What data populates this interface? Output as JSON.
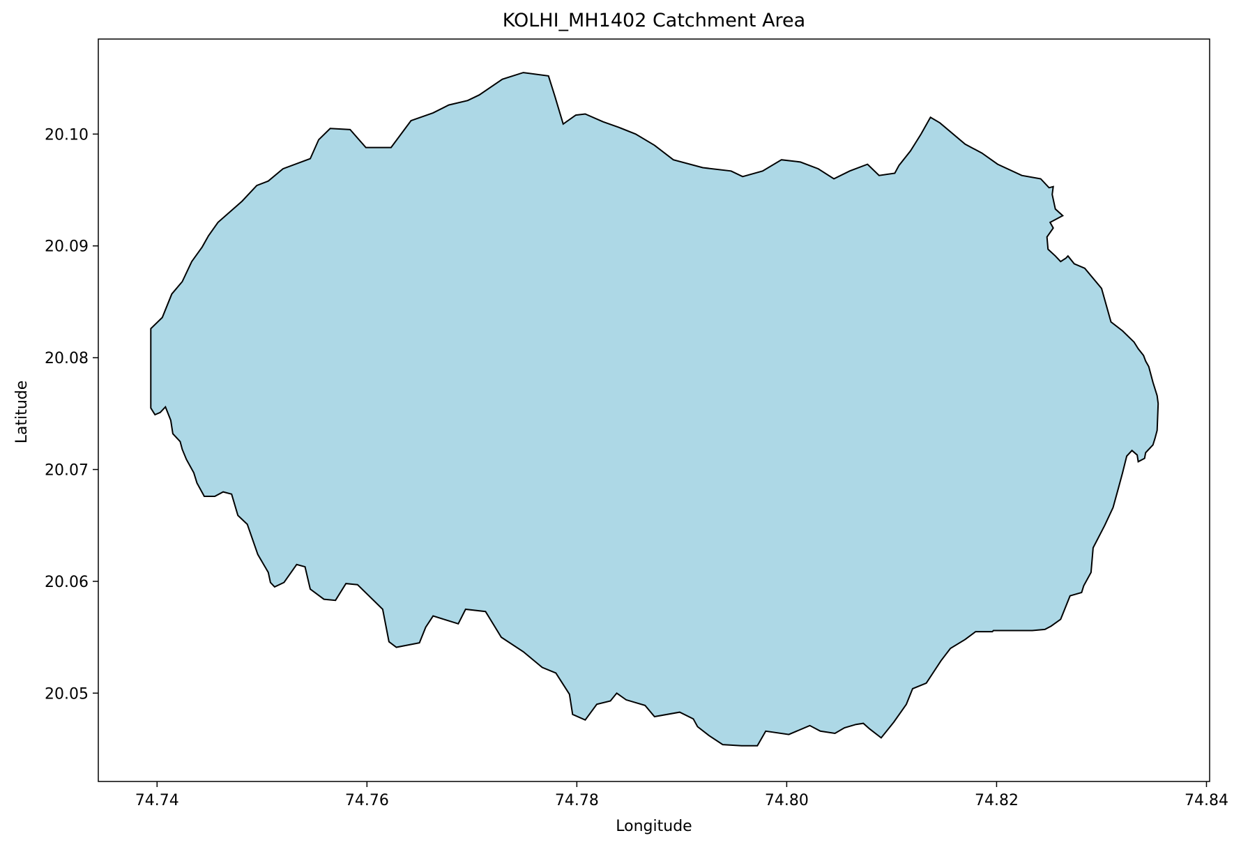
{
  "chart_data": {
    "type": "area",
    "title": "KOLHI_MH1402 Catchment Area",
    "xlabel": "Longitude",
    "ylabel": "Latitude",
    "xlim": [
      74.7344,
      74.8403
    ],
    "ylim": [
      20.0421,
      20.1085
    ],
    "x_ticks": [
      74.74,
      74.76,
      74.78,
      74.8,
      74.82,
      74.84
    ],
    "x_tick_labels": [
      "74.74",
      "74.76",
      "74.78",
      "74.80",
      "74.82",
      "74.84"
    ],
    "y_ticks": [
      20.05,
      20.06,
      20.07,
      20.08,
      20.09,
      20.1
    ],
    "y_tick_labels": [
      "20.05",
      "20.06",
      "20.07",
      "20.08",
      "20.09",
      "20.10"
    ],
    "grid": false,
    "fill_color": "#add8e6",
    "edge_color": "#000000",
    "polygon": {
      "lon": [
        74.7394,
        74.7398,
        74.7403,
        74.7408,
        74.7413,
        74.7415,
        74.7422,
        74.7424,
        74.7428,
        74.7435,
        74.7438,
        74.7445,
        74.7455,
        74.7463,
        74.7471,
        74.7477,
        74.7486,
        74.7496,
        74.7506,
        74.7508,
        74.7512,
        74.7521,
        74.7533,
        74.7541,
        74.7546,
        74.7559,
        74.757,
        74.758,
        74.7591,
        74.7615,
        74.7621,
        74.7628,
        74.765,
        74.7656,
        74.7663,
        74.7687,
        74.7694,
        74.7713,
        74.7728,
        74.7749,
        74.7767,
        74.778,
        74.7793,
        74.7796,
        74.7808,
        74.7819,
        74.7832,
        74.7838,
        74.7847,
        74.7865,
        74.7874,
        74.7898,
        74.7911,
        74.7915,
        74.7926,
        74.7939,
        74.7957,
        74.7972,
        74.798,
        74.8002,
        74.8022,
        74.8032,
        74.8046,
        74.8055,
        74.8066,
        74.8073,
        74.8079,
        74.809,
        74.8102,
        74.8114,
        74.812,
        74.8133,
        74.8147,
        74.8156,
        74.817,
        74.818,
        74.8183,
        74.8196,
        74.8197,
        74.821,
        74.8225,
        74.8234,
        74.8246,
        74.8252,
        74.8261,
        74.827,
        74.8281,
        74.8283,
        74.829,
        74.8292,
        74.8303,
        74.8311,
        74.8316,
        74.832,
        74.8324,
        74.8329,
        74.8334,
        74.8335,
        74.8341,
        74.8342,
        74.8349,
        74.8351,
        74.8353,
        74.8354,
        74.8353,
        74.8349,
        74.8345,
        74.8342,
        74.834,
        74.8335,
        74.8331,
        74.832,
        74.8309,
        74.83,
        74.8284,
        74.8274,
        74.8268,
        74.8266,
        74.8261,
        74.8256,
        74.8249,
        74.8248,
        74.8254,
        74.8251,
        74.8263,
        74.8256,
        74.8253,
        74.8254,
        74.825,
        74.8242,
        74.8224,
        74.8201,
        74.8186,
        74.817,
        74.8146,
        74.8137,
        74.8128,
        74.8118,
        74.8107,
        74.8103,
        74.8088,
        74.8077,
        74.806,
        74.8045,
        74.803,
        74.8013,
        74.7995,
        74.7977,
        74.7958,
        74.7947,
        74.792,
        74.7892,
        74.7874,
        74.7856,
        74.784,
        74.7825,
        74.7808,
        74.7799,
        74.7787,
        74.7779,
        74.7773,
        74.7749,
        74.7729,
        74.7707,
        74.7696,
        74.7678,
        74.7663,
        74.7642,
        74.7623,
        74.7599,
        74.7584,
        74.7565,
        74.7554,
        74.7546,
        74.752,
        74.7506,
        74.7495,
        74.7481,
        74.7458,
        74.7449,
        74.7443,
        74.7433,
        74.7424,
        74.7414,
        74.7405,
        74.7394
      ],
      "lat": [
        20.0755,
        20.0749,
        20.0751,
        20.0756,
        20.0744,
        20.0732,
        20.0725,
        20.0718,
        20.0709,
        20.0697,
        20.0688,
        20.0676,
        20.0676,
        20.068,
        20.0678,
        20.0659,
        20.0651,
        20.0624,
        20.0608,
        20.0599,
        20.0595,
        20.0599,
        20.0615,
        20.0613,
        20.0593,
        20.0584,
        20.0583,
        20.0598,
        20.0597,
        20.0575,
        20.0546,
        20.0541,
        20.0545,
        20.0559,
        20.0569,
        20.0562,
        20.0575,
        20.0573,
        20.055,
        20.0537,
        20.0523,
        20.0518,
        20.0499,
        20.0481,
        20.0476,
        20.049,
        20.0493,
        20.05,
        20.0494,
        20.0489,
        20.0479,
        20.0483,
        20.0477,
        20.047,
        20.0462,
        20.0454,
        20.0453,
        20.0453,
        20.0466,
        20.0463,
        20.0471,
        20.0466,
        20.0464,
        20.0469,
        20.0472,
        20.0473,
        20.0468,
        20.046,
        20.0474,
        20.049,
        20.0504,
        20.0509,
        20.0529,
        20.054,
        20.0548,
        20.0555,
        20.0555,
        20.0555,
        20.0556,
        20.0556,
        20.0556,
        20.0556,
        20.0557,
        20.056,
        20.0566,
        20.0587,
        20.059,
        20.0596,
        20.0608,
        20.063,
        20.065,
        20.0666,
        20.0683,
        20.0697,
        20.0712,
        20.0717,
        20.0713,
        20.0707,
        20.071,
        20.0715,
        20.0722,
        20.0728,
        20.0735,
        20.0759,
        20.0766,
        20.0778,
        20.0792,
        20.0797,
        20.0802,
        20.0808,
        20.0814,
        20.0824,
        20.0832,
        20.0862,
        20.088,
        20.0884,
        20.0891,
        20.0889,
        20.0886,
        20.0891,
        20.0897,
        20.0908,
        20.0916,
        20.0921,
        20.0927,
        20.0933,
        20.0946,
        20.0953,
        20.0952,
        20.096,
        20.0963,
        20.0973,
        20.0983,
        20.0991,
        20.101,
        20.1015,
        20.1,
        20.0985,
        20.0972,
        20.0965,
        20.0963,
        20.0973,
        20.0967,
        20.096,
        20.0969,
        20.0975,
        20.0977,
        20.0967,
        20.0962,
        20.0967,
        20.097,
        20.0977,
        20.099,
        20.1,
        20.1006,
        20.1011,
        20.1018,
        20.1017,
        20.1009,
        20.1034,
        20.1052,
        20.1055,
        20.1049,
        20.1035,
        20.103,
        20.1026,
        20.1019,
        20.1012,
        20.0988,
        20.0988,
        20.1004,
        20.1005,
        20.0995,
        20.0978,
        20.0969,
        20.0958,
        20.0954,
        20.094,
        20.0921,
        20.0909,
        20.0899,
        20.0886,
        20.0868,
        20.0857,
        20.0836,
        20.0826,
        20.0812,
        20.0802
      ]
    }
  }
}
